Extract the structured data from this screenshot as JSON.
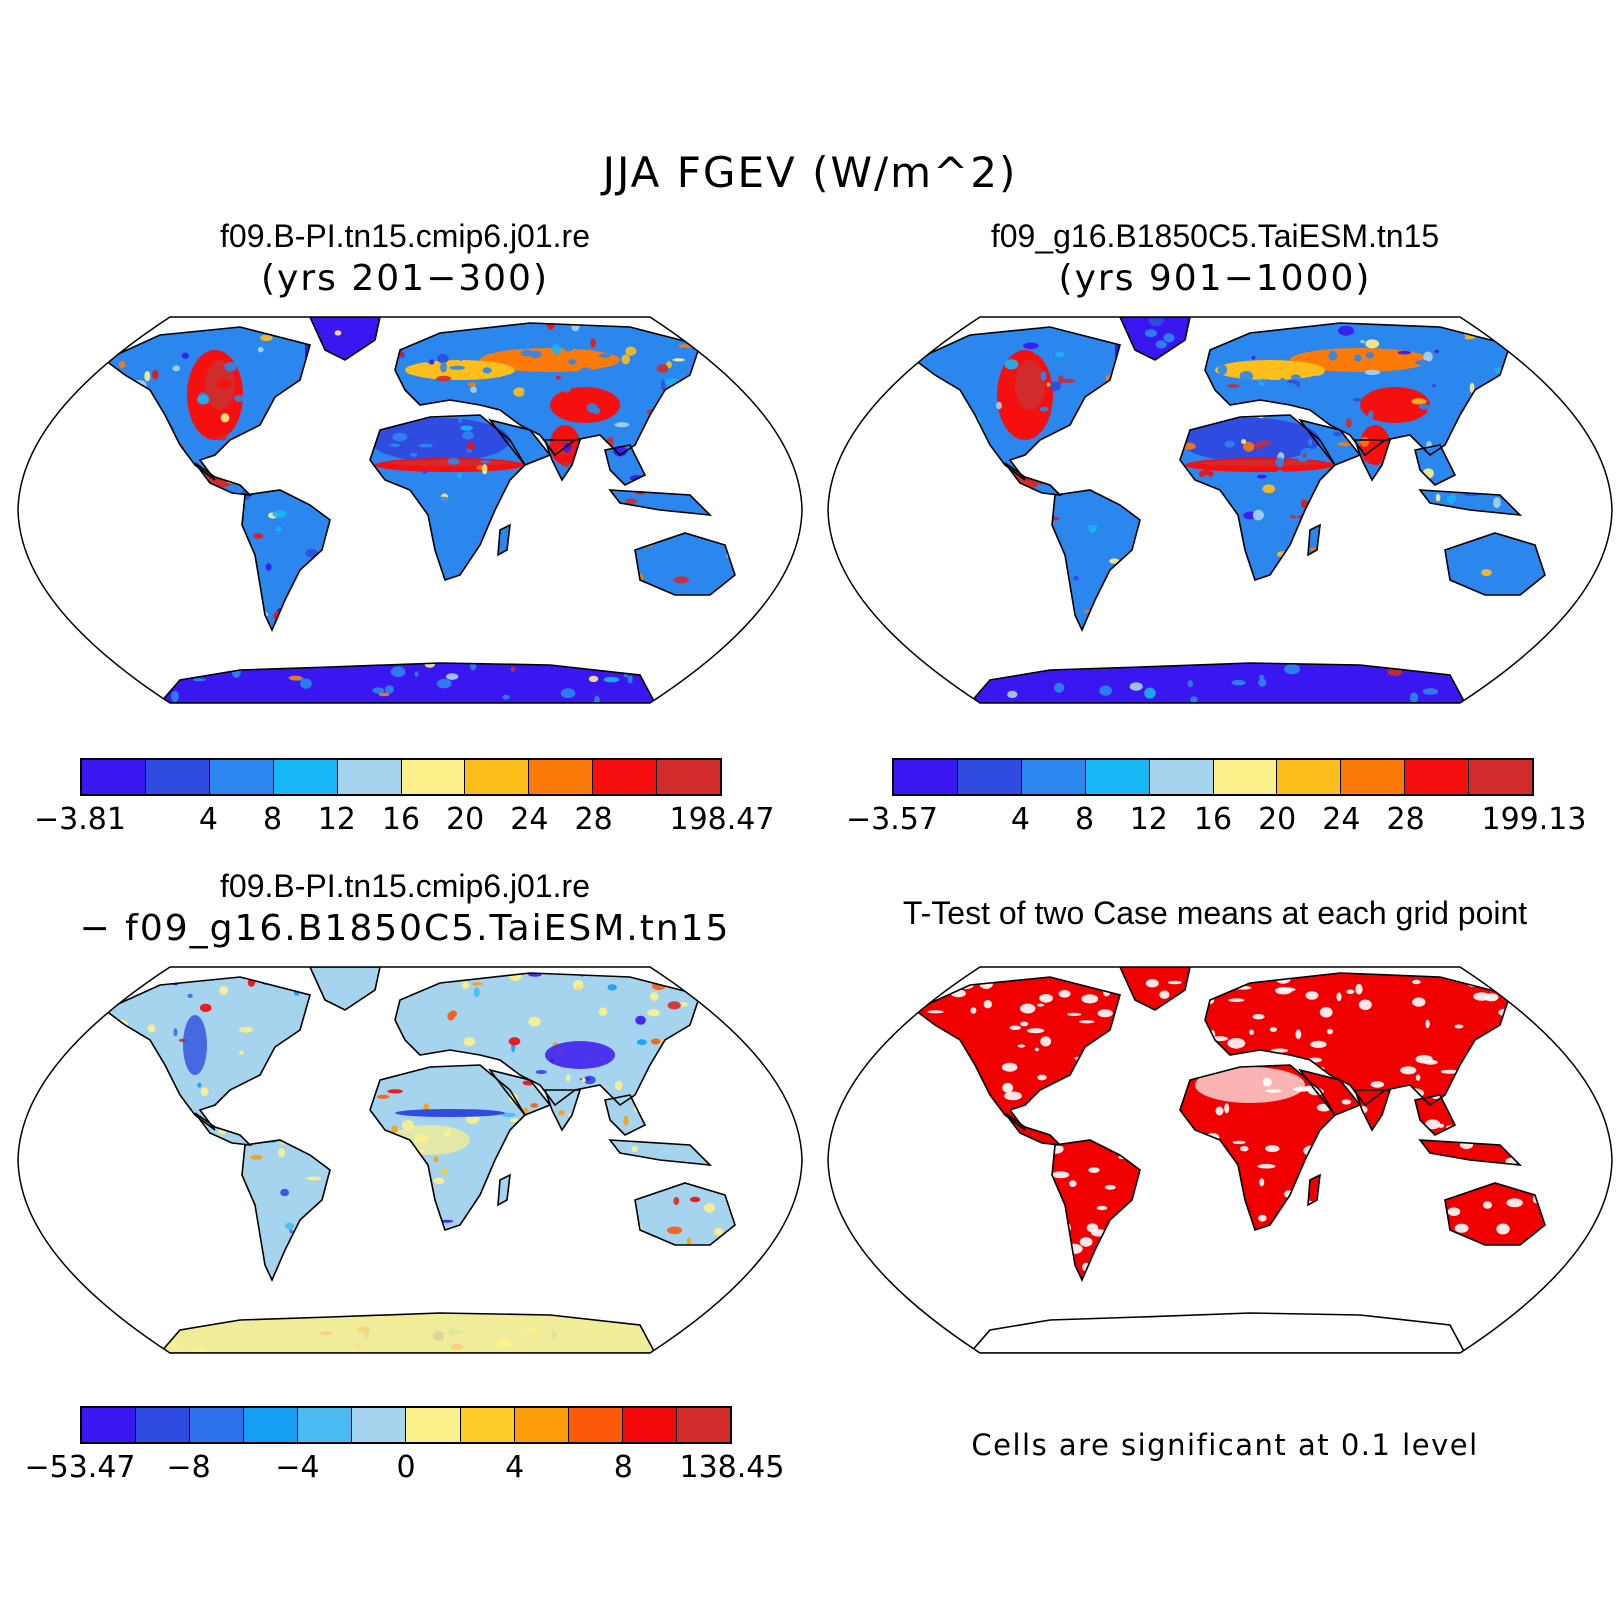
{
  "title": "JJA FGEV (W/m^2)",
  "panels": [
    {
      "title": "f09.B-PI.tn15.cmip6.j01.re",
      "subtitle": "(yrs 201−300)"
    },
    {
      "title": "f09_g16.B1850C5.TaiESM.tn15",
      "subtitle": "(yrs 901−1000)"
    },
    {
      "title": "f09.B-PI.tn15.cmip6.j01.re",
      "subtitle": "− f09_g16.B1850C5.TaiESM.tn15"
    },
    {
      "title": "T-Test of two Case means at each grid point",
      "subtitle": ""
    }
  ],
  "colorbars": {
    "case1": {
      "labels": [
        "−3.81",
        "4",
        "8",
        "12",
        "16",
        "20",
        "24",
        "28",
        "198.47"
      ],
      "colors": [
        "#3a17f0",
        "#2f4be0",
        "#2b86ee",
        "#17b6f5",
        "#a6d4ee",
        "#fdf18b",
        "#fdbe1c",
        "#fc7a0a",
        "#f50f0f",
        "#d22b2b"
      ]
    },
    "case2": {
      "labels": [
        "−3.57",
        "4",
        "8",
        "12",
        "16",
        "20",
        "24",
        "28",
        "199.13"
      ],
      "colors": [
        "#3a17f0",
        "#2f4be0",
        "#2b86ee",
        "#17b6f5",
        "#a6d4ee",
        "#fdf18b",
        "#fdbe1c",
        "#fc7a0a",
        "#f50f0f",
        "#d22b2b"
      ]
    },
    "diff": {
      "labels": [
        "−53.47",
        "−8",
        "−4",
        "0",
        "4",
        "8",
        "138.45"
      ],
      "colors": [
        "#3a17f0",
        "#2f4be0",
        "#2d72e8",
        "#149ff4",
        "#4cbaf2",
        "#a6d4ee",
        "#fdf18b",
        "#fdcc2a",
        "#fd9d0a",
        "#fc5a0a",
        "#f20a0a",
        "#d22b2b"
      ]
    }
  },
  "significance_note": "Cells are significant at 0.1 level",
  "map_colors": {
    "ocean": "#ffffff",
    "coast": "#000000",
    "significant": "#f00000"
  }
}
